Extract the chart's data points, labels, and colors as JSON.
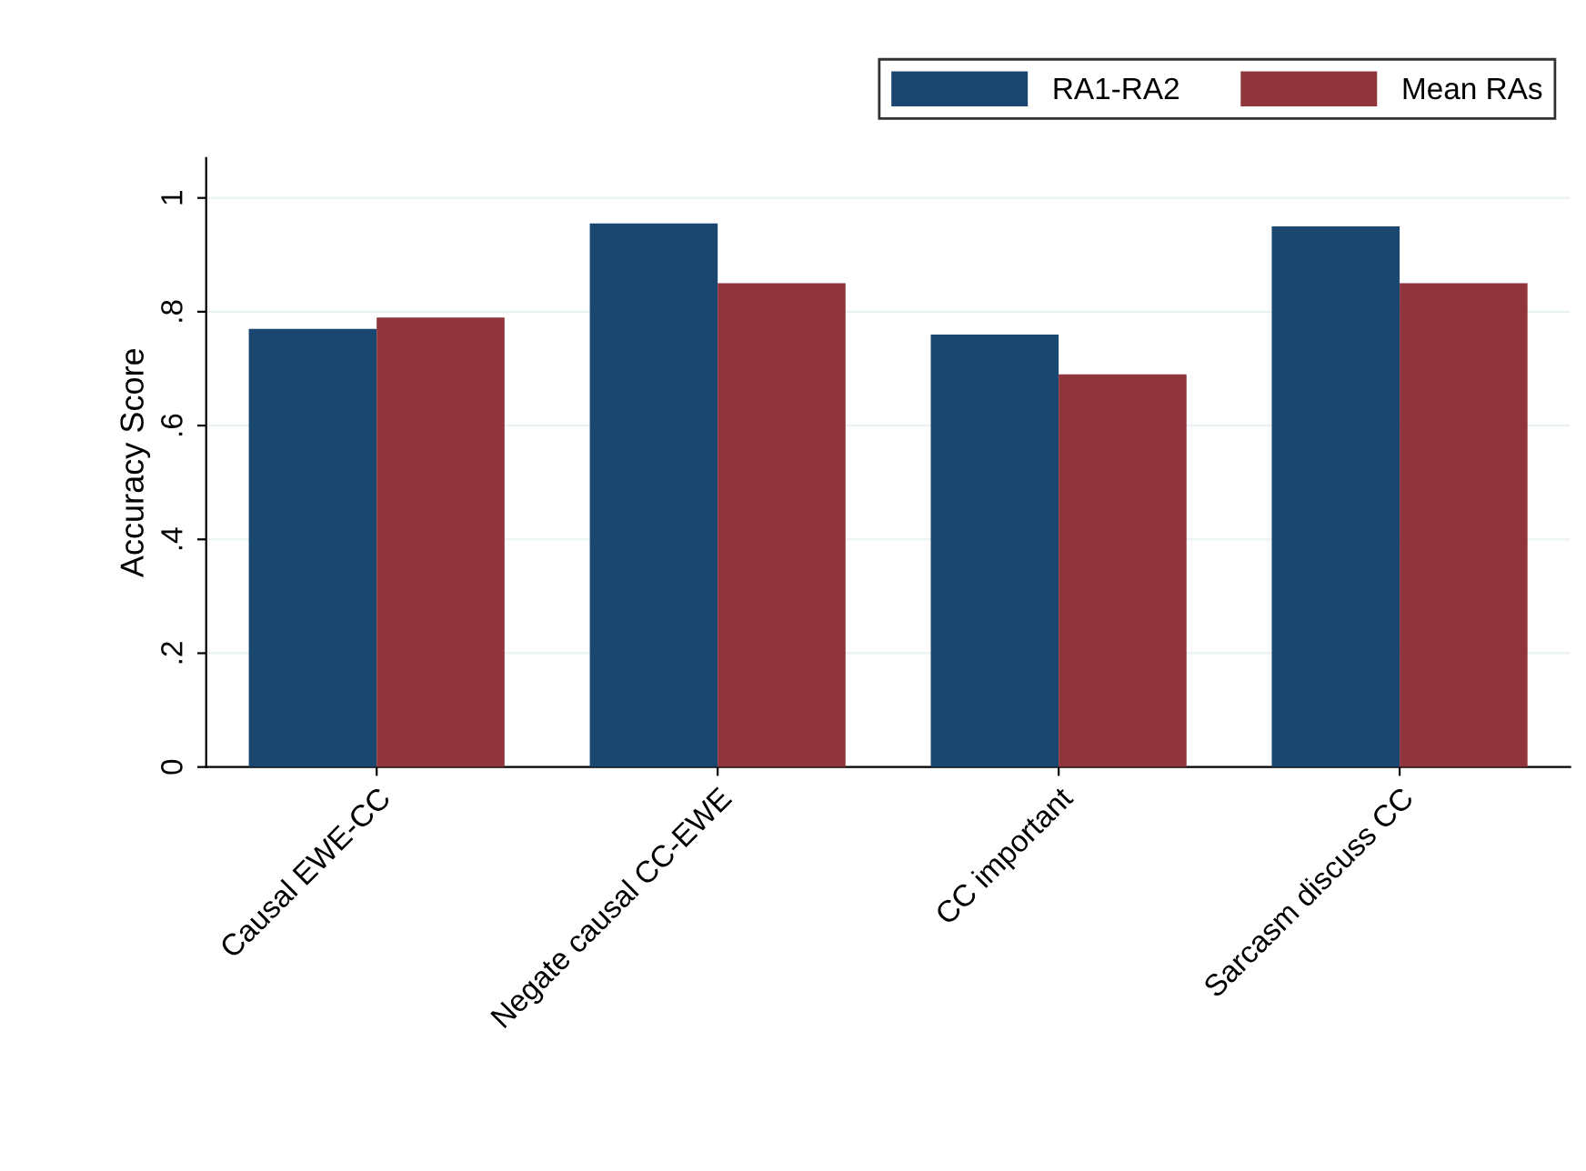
{
  "chart_data": {
    "type": "bar",
    "ylabel": "Accuracy Score",
    "categories": [
      "Causal EWE-CC",
      "Negate causal CC-EWE",
      "CC important",
      "Sarcasm discuss CC"
    ],
    "series": [
      {
        "name": "RA1-RA2",
        "color": "#1a476f",
        "values": [
          0.77,
          0.955,
          0.76,
          0.95
        ]
      },
      {
        "name": "Mean RAs",
        "color": "#90353b",
        "values": [
          0.79,
          0.85,
          0.69,
          0.85
        ]
      }
    ],
    "ylim": [
      0,
      1.07
    ],
    "yticks": [
      {
        "value": 0,
        "label": "0"
      },
      {
        "value": 0.2,
        "label": ".2"
      },
      {
        "value": 0.4,
        "label": ".4"
      },
      {
        "value": 0.6,
        "label": ".6"
      },
      {
        "value": 0.8,
        "label": ".8"
      },
      {
        "value": 1,
        "label": "1"
      }
    ],
    "grid": "y",
    "legend": "top right"
  }
}
